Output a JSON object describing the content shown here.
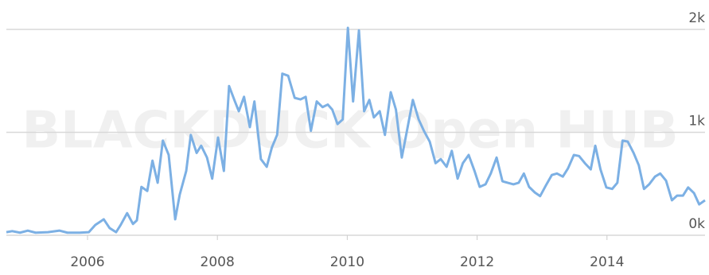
{
  "chart_data": {
    "type": "line",
    "watermark": "BLACKDUCK Open HUB",
    "x": [
      2004.75,
      2004.84,
      2004.96,
      2005.08,
      2005.2,
      2005.39,
      2005.57,
      2005.69,
      2005.88,
      2006.02,
      2006.12,
      2006.25,
      2006.34,
      2006.44,
      2006.51,
      2006.61,
      2006.7,
      2006.76,
      2006.83,
      2006.92,
      2007.0,
      2007.08,
      2007.16,
      2007.25,
      2007.35,
      2007.42,
      2007.52,
      2007.59,
      2007.68,
      2007.75,
      2007.84,
      2007.92,
      2008.01,
      2008.1,
      2008.18,
      2008.27,
      2008.33,
      2008.41,
      2008.5,
      2008.57,
      2008.67,
      2008.76,
      2008.84,
      2008.92,
      2009.0,
      2009.09,
      2009.19,
      2009.28,
      2009.36,
      2009.44,
      2009.53,
      2009.62,
      2009.7,
      2009.77,
      2009.85,
      2009.93,
      2010.01,
      2010.09,
      2010.18,
      2010.26,
      2010.34,
      2010.41,
      2010.5,
      2010.58,
      2010.67,
      2010.75,
      2010.84,
      2010.93,
      2011.01,
      2011.1,
      2011.18,
      2011.27,
      2011.36,
      2011.44,
      2011.53,
      2011.61,
      2011.7,
      2011.78,
      2011.87,
      2011.96,
      2012.04,
      2012.13,
      2012.21,
      2012.3,
      2012.39,
      2012.47,
      2012.56,
      2012.64,
      2012.72,
      2012.8,
      2012.89,
      2012.97,
      2013.06,
      2013.15,
      2013.23,
      2013.32,
      2013.4,
      2013.49,
      2013.57,
      2013.66,
      2013.75,
      2013.82,
      2013.9,
      2013.99,
      2014.08,
      2014.16,
      2014.24,
      2014.32,
      2014.41,
      2014.49,
      2014.57,
      2014.65,
      2014.74,
      2014.82,
      2014.91,
      2015.0,
      2015.08,
      2015.17,
      2015.25,
      2015.34,
      2015.42,
      2015.51
    ],
    "series": [
      {
        "color": "#7cb0e4",
        "values": [
          30,
          40,
          25,
          45,
          25,
          30,
          45,
          25,
          25,
          30,
          100,
          155,
          70,
          30,
          100,
          215,
          110,
          145,
          470,
          430,
          725,
          510,
          920,
          780,
          155,
          395,
          625,
          975,
          800,
          870,
          755,
          550,
          950,
          625,
          1450,
          1300,
          1205,
          1345,
          1050,
          1300,
          740,
          665,
          855,
          975,
          1570,
          1550,
          1335,
          1320,
          1345,
          1015,
          1300,
          1245,
          1270,
          1220,
          1080,
          1125,
          2015,
          1300,
          1990,
          1205,
          1315,
          1145,
          1205,
          975,
          1390,
          1220,
          755,
          1050,
          1315,
          1125,
          1015,
          910,
          700,
          740,
          665,
          820,
          550,
          700,
          780,
          625,
          470,
          495,
          600,
          755,
          525,
          510,
          495,
          510,
          600,
          470,
          415,
          380,
          485,
          585,
          600,
          570,
          650,
          780,
          770,
          700,
          640,
          870,
          640,
          465,
          450,
          510,
          920,
          910,
          800,
          680,
          450,
          495,
          570,
          600,
          530,
          340,
          385,
          385,
          465,
          410,
          300,
          340
        ]
      }
    ],
    "xlim": [
      2004.75,
      2015.51
    ],
    "xticks": [
      2006,
      2008,
      2010,
      2012,
      2014
    ],
    "ylim": [
      0,
      2000
    ],
    "yticks": [
      {
        "value": 0,
        "label": "0k"
      },
      {
        "value": 1000,
        "label": "1k"
      },
      {
        "value": 2000,
        "label": "2k"
      }
    ],
    "grid": true
  }
}
